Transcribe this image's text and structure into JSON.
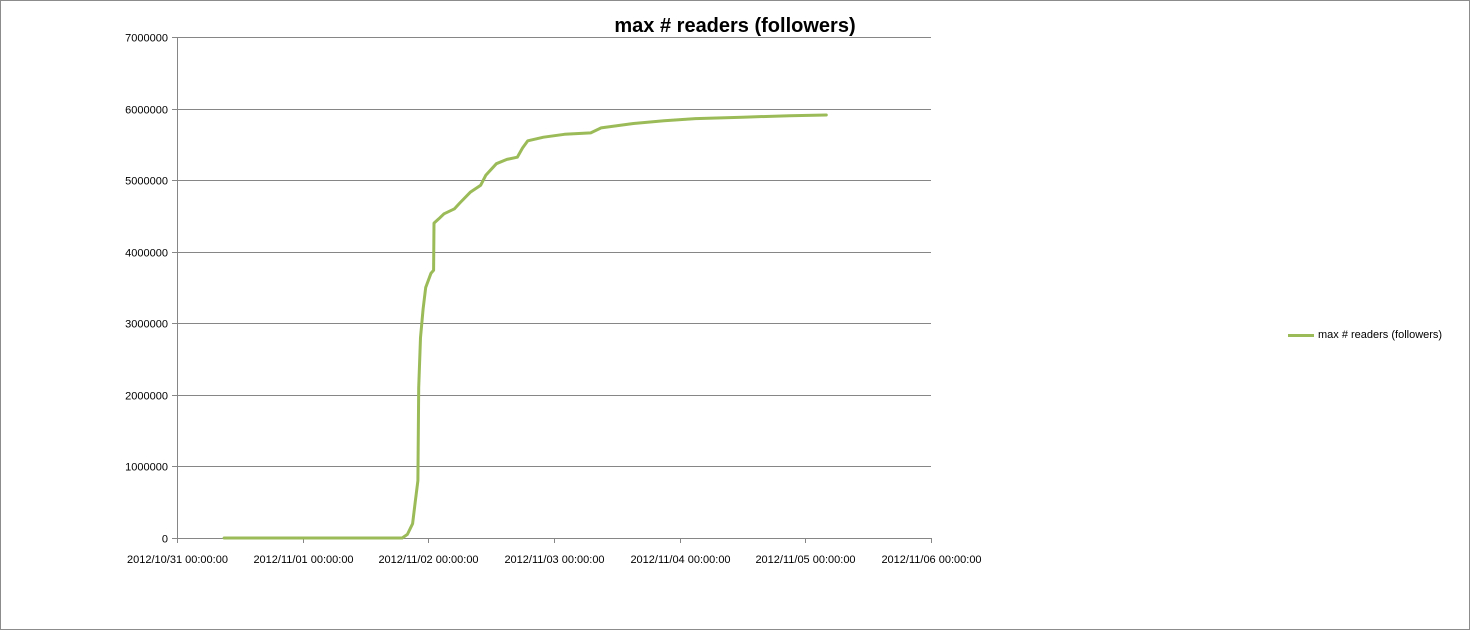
{
  "chart_data": {
    "type": "line",
    "title": "max # readers (followers)",
    "xlabel": "",
    "ylabel": "",
    "x_axis_type": "date",
    "xlim": [
      "2012/10/31 00:00:00",
      "2012/11/06 00:00:00"
    ],
    "ylim": [
      0,
      7000000
    ],
    "y_ticks": [
      0,
      1000000,
      2000000,
      3000000,
      4000000,
      5000000,
      6000000,
      7000000
    ],
    "y_tick_labels": [
      "0",
      "1000000",
      "2000000",
      "3000000",
      "4000000",
      "5000000",
      "6000000",
      "7000000"
    ],
    "x_ticks": [
      "2012/10/31 00:00:00",
      "2012/11/01 00:00:00",
      "2012/11/02 00:00:00",
      "2012/11/03 00:00:00",
      "2012/11/04 00:00:00",
      "2012/11/05 00:00:00",
      "2012/11/06 00:00:00"
    ],
    "x_tick_labels": [
      "2012/10/31 00:00:00",
      "2012/11/01 00:00:00",
      "2012/11/02 00:00:00",
      "2012/11/03 00:00:00",
      "2012/11/04 00:00:00",
      "2012/11/05 00:00:00",
      "2012/11/06 00:00:00"
    ],
    "grid": {
      "horizontal": true,
      "vertical": false
    },
    "legend_position": "right",
    "series": [
      {
        "name": "max # readers (followers)",
        "color": "#9bbb59",
        "points": [
          {
            "x": "2012/10/31 09:00",
            "y": 0
          },
          {
            "x": "2012/11/01 19:00",
            "y": 0
          },
          {
            "x": "2012/11/01 20:00",
            "y": 50000
          },
          {
            "x": "2012/11/01 21:00",
            "y": 200000
          },
          {
            "x": "2012/11/01 21:30",
            "y": 500000
          },
          {
            "x": "2012/11/01 22:00",
            "y": 800000
          },
          {
            "x": "2012/11/01 22:10",
            "y": 2100000
          },
          {
            "x": "2012/11/01 22:30",
            "y": 2800000
          },
          {
            "x": "2012/11/01 23:00",
            "y": 3200000
          },
          {
            "x": "2012/11/01 23:30",
            "y": 3500000
          },
          {
            "x": "2012/11/02 00:30",
            "y": 3700000
          },
          {
            "x": "2012/11/02 01:00",
            "y": 3740000
          },
          {
            "x": "2012/11/02 01:05",
            "y": 4400000
          },
          {
            "x": "2012/11/02 02:00",
            "y": 4460000
          },
          {
            "x": "2012/11/02 03:00",
            "y": 4530000
          },
          {
            "x": "2012/11/02 05:00",
            "y": 4600000
          },
          {
            "x": "2012/11/02 06:00",
            "y": 4680000
          },
          {
            "x": "2012/11/02 08:00",
            "y": 4830000
          },
          {
            "x": "2012/11/02 10:00",
            "y": 4930000
          },
          {
            "x": "2012/11/02 11:00",
            "y": 5070000
          },
          {
            "x": "2012/11/02 13:00",
            "y": 5230000
          },
          {
            "x": "2012/11/02 15:00",
            "y": 5290000
          },
          {
            "x": "2012/11/02 17:00",
            "y": 5320000
          },
          {
            "x": "2012/11/02 18:00",
            "y": 5450000
          },
          {
            "x": "2012/11/02 19:00",
            "y": 5550000
          },
          {
            "x": "2012/11/02 22:00",
            "y": 5600000
          },
          {
            "x": "2012/11/03 02:00",
            "y": 5640000
          },
          {
            "x": "2012/11/03 07:00",
            "y": 5660000
          },
          {
            "x": "2012/11/03 09:00",
            "y": 5730000
          },
          {
            "x": "2012/11/03 15:00",
            "y": 5790000
          },
          {
            "x": "2012/11/03 21:00",
            "y": 5830000
          },
          {
            "x": "2012/11/04 03:00",
            "y": 5860000
          },
          {
            "x": "2012/11/04 12:00",
            "y": 5880000
          },
          {
            "x": "2012/11/04 21:00",
            "y": 5900000
          },
          {
            "x": "2012/11/05 04:00",
            "y": 5910000
          }
        ]
      }
    ]
  }
}
